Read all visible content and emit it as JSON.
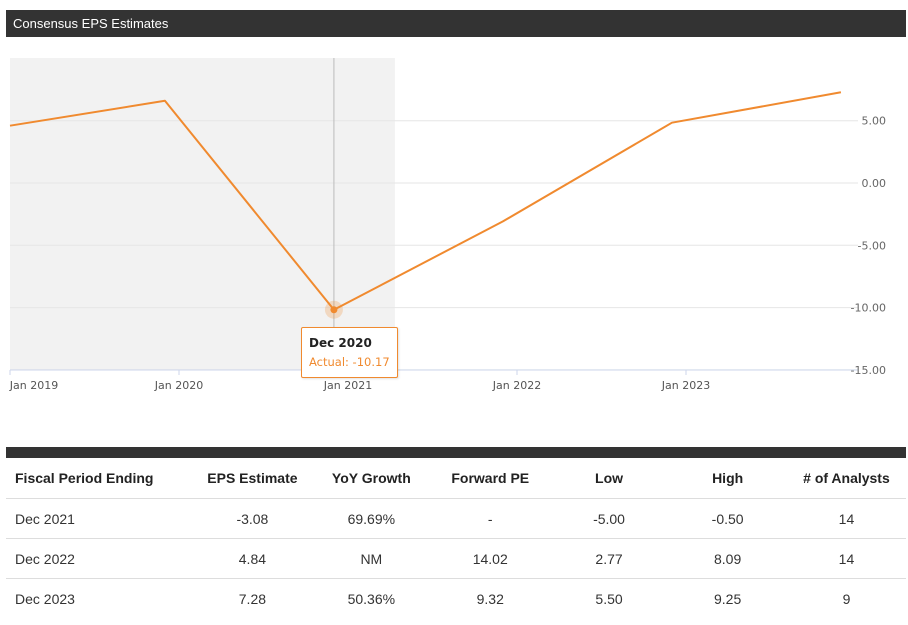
{
  "header": {
    "title": "Consensus EPS Estimates"
  },
  "chart_data": {
    "type": "line",
    "x_tick_labels": [
      "Jan 2019",
      "Jan 2020",
      "Jan 2021",
      "Jan 2022",
      "Jan 2023"
    ],
    "y_tick_labels": [
      "5.00",
      "0.00",
      "-5.00",
      "-10.00",
      "-15.00"
    ],
    "ylim": [
      -15,
      5
    ],
    "series": [
      {
        "points": [
          {
            "x": "Dec 2018",
            "y": 4.6
          },
          {
            "x": "Dec 2019",
            "y": 6.6
          },
          {
            "x": "Dec 2020",
            "y": -10.17
          },
          {
            "x": "Dec 2021",
            "y": -3.08
          },
          {
            "x": "Dec 2022",
            "y": 4.84
          },
          {
            "x": "Dec 2023",
            "y": 7.28
          }
        ]
      }
    ],
    "highlight_period": "actual",
    "tooltip": {
      "title": "Dec 2020",
      "value": "Actual: -10.17"
    },
    "colors": {
      "line": "#f08a2f",
      "shade": "#f2f2f2",
      "grid": "#e6e6e6"
    }
  },
  "table": {
    "columns": [
      "Fiscal Period Ending",
      "EPS Estimate",
      "YoY Growth",
      "Forward PE",
      "Low",
      "High",
      "# of Analysts"
    ],
    "rows": [
      [
        "Dec 2021",
        "-3.08",
        "69.69%",
        "-",
        "-5.00",
        "-0.50",
        "14"
      ],
      [
        "Dec 2022",
        "4.84",
        "NM",
        "14.02",
        "2.77",
        "8.09",
        "14"
      ],
      [
        "Dec 2023",
        "7.28",
        "50.36%",
        "9.32",
        "5.50",
        "9.25",
        "9"
      ]
    ]
  }
}
